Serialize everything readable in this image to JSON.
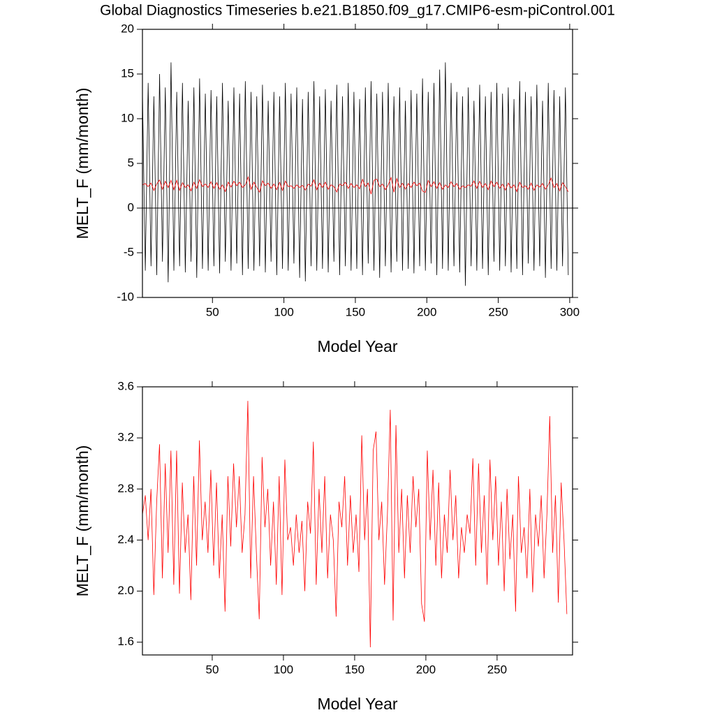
{
  "chart_data": [
    {
      "type": "line",
      "title": "Global Diagnostics Timeseries b.e21.B1850.f09_g17.CMIP6-esm-piControl.001",
      "ylabel": "MELT_F (mm/month)",
      "xlabel": "Model Year",
      "xlim": [
        1,
        302
      ],
      "ylim": [
        -10,
        20
      ],
      "xticks": [
        50,
        100,
        150,
        200,
        250,
        300
      ],
      "yticks": [
        -10,
        -5,
        0,
        5,
        10,
        15,
        20
      ],
      "zero_line": true,
      "x": [
        1,
        3,
        5,
        7,
        9,
        11,
        13,
        15,
        17,
        19,
        21,
        23,
        25,
        27,
        29,
        31,
        33,
        35,
        37,
        39,
        41,
        43,
        45,
        47,
        49,
        51,
        53,
        55,
        57,
        59,
        61,
        63,
        65,
        67,
        69,
        71,
        73,
        75,
        77,
        79,
        81,
        83,
        85,
        87,
        89,
        91,
        93,
        95,
        97,
        99,
        101,
        103,
        105,
        107,
        109,
        111,
        113,
        115,
        117,
        119,
        121,
        123,
        125,
        127,
        129,
        131,
        133,
        135,
        137,
        139,
        141,
        143,
        145,
        147,
        149,
        151,
        153,
        155,
        157,
        159,
        161,
        163,
        165,
        167,
        169,
        171,
        173,
        175,
        177,
        179,
        181,
        183,
        185,
        187,
        189,
        191,
        193,
        195,
        197,
        199,
        201,
        203,
        205,
        207,
        209,
        211,
        213,
        215,
        217,
        219,
        221,
        223,
        225,
        227,
        229,
        231,
        233,
        235,
        237,
        239,
        241,
        243,
        245,
        247,
        249,
        251,
        253,
        255,
        257,
        259,
        261,
        263,
        265,
        267,
        269,
        271,
        273,
        275,
        277,
        279,
        281,
        283,
        285,
        287,
        289,
        291,
        293,
        295,
        297,
        299
      ],
      "series": [
        {
          "color": "#000000",
          "values": [
            13,
            -7,
            14,
            -6.5,
            12.5,
            -7.5,
            15,
            -6,
            13.5,
            -8.3,
            16.3,
            -7,
            13,
            -6.5,
            14,
            -7.2,
            12,
            -6,
            13.5,
            -7.8,
            14.5,
            -6.8,
            12.8,
            -7,
            13.2,
            -6.5,
            12.5,
            -7.3,
            14,
            -6,
            12,
            -7,
            13.5,
            -6.2,
            12.8,
            -7.5,
            14.2,
            -6.8,
            13,
            -7,
            12.5,
            -6.5,
            13.8,
            -7.2,
            12,
            -6,
            13,
            -7.5,
            12.5,
            -6.8,
            14,
            -7,
            12.8,
            -6.2,
            13.5,
            -7.8,
            12.2,
            -8.2,
            13,
            -6.5,
            14.2,
            -7,
            12.5,
            -6.8,
            13.3,
            -7.2,
            12,
            -6,
            13.8,
            -7.5,
            12.5,
            -6.5,
            14,
            -7,
            13,
            -6.8,
            12.2,
            -7.5,
            13.5,
            -6.2,
            14.2,
            -7,
            12.8,
            -7.8,
            13,
            -6.5,
            14,
            -7.2,
            12.5,
            -6,
            13.5,
            -7,
            12,
            -6.8,
            13.2,
            -7.3,
            12.8,
            -6.5,
            14.5,
            -7,
            13,
            -6.2,
            14,
            -7.5,
            15.5,
            -6.8,
            16.3,
            -7,
            14,
            -6.5,
            13,
            -7.2,
            12.5,
            -8.7,
            13.5,
            -6.5,
            12,
            -7,
            13.8,
            -6.8,
            12.5,
            -7.5,
            13,
            -6,
            14,
            -7,
            12.8,
            -6.5,
            13.5,
            -7.2,
            12.2,
            -6.8,
            14.2,
            -7.5,
            13,
            -6.2,
            12.5,
            -7,
            13.8,
            -6.5,
            12,
            -7.8,
            14,
            -6.8,
            13.2,
            -7,
            12.5,
            -6.5,
            13.5,
            -7.5
          ]
        },
        {
          "color": "#ff0000",
          "values": [
            2.6,
            2.75,
            2.4,
            2.8,
            1.97,
            2.7,
            3.15,
            2.1,
            3.0,
            2.3,
            3.1,
            2.05,
            3.1,
            1.98,
            2.85,
            2.3,
            2.6,
            1.93,
            2.9,
            2.2,
            3.18,
            2.4,
            2.7,
            2.3,
            2.95,
            2.2,
            2.85,
            2.1,
            2.6,
            1.84,
            2.9,
            2.35,
            3.0,
            2.5,
            2.9,
            2.3,
            2.6,
            3.49,
            2.1,
            2.9,
            2.3,
            1.78,
            3.05,
            2.5,
            2.8,
            2.2,
            2.7,
            2.05,
            2.9,
            1.97,
            3.03,
            2.4,
            2.5,
            2.2,
            2.6,
            2.3,
            2.55,
            2.0,
            2.7,
            2.45,
            3.17,
            2.05,
            2.8,
            2.3,
            2.9,
            2.1,
            2.6,
            2.4,
            1.8,
            2.7,
            2.5,
            2.9,
            2.2,
            2.75,
            2.3,
            2.6,
            2.15,
            3.22,
            2.4,
            2.8,
            1.56,
            3.1,
            3.25,
            2.4,
            2.7,
            2.05,
            2.6,
            3.42,
            1.77,
            3.3,
            2.3,
            2.8,
            2.1,
            2.75,
            2.3,
            2.9,
            2.5,
            2.8,
            1.9,
            1.76,
            3.1,
            2.4,
            2.95,
            2.2,
            2.85,
            2.1,
            2.6,
            2.3,
            2.95,
            2.4,
            2.75,
            2.1,
            2.5,
            2.3,
            2.6,
            2.45,
            3.04,
            2.2,
            3.0,
            2.3,
            2.75,
            2.05,
            3.03,
            2.4,
            2.9,
            2.2,
            2.7,
            2.0,
            2.8,
            2.25,
            2.6,
            1.84,
            2.9,
            2.3,
            2.5,
            2.1,
            2.8,
            1.99,
            2.6,
            2.35,
            2.75,
            2.1,
            2.6,
            3.37,
            2.3,
            2.75,
            1.91,
            2.85,
            2.4,
            1.82
          ]
        }
      ]
    },
    {
      "type": "line",
      "ylabel": "MELT_F (mm/month)",
      "xlabel": "Model Year",
      "xlim": [
        1,
        303
      ],
      "ylim": [
        1.5,
        3.6
      ],
      "xticks": [
        50,
        100,
        150,
        200,
        250
      ],
      "yticks": [
        1.6,
        {
          "value": 2,
          "label": "2.0"
        },
        2.4,
        2.8,
        3.2,
        3.6
      ],
      "x": [
        1,
        3,
        5,
        7,
        9,
        11,
        13,
        15,
        17,
        19,
        21,
        23,
        25,
        27,
        29,
        31,
        33,
        35,
        37,
        39,
        41,
        43,
        45,
        47,
        49,
        51,
        53,
        55,
        57,
        59,
        61,
        63,
        65,
        67,
        69,
        71,
        73,
        75,
        77,
        79,
        81,
        83,
        85,
        87,
        89,
        91,
        93,
        95,
        97,
        99,
        101,
        103,
        105,
        107,
        109,
        111,
        113,
        115,
        117,
        119,
        121,
        123,
        125,
        127,
        129,
        131,
        133,
        135,
        137,
        139,
        141,
        143,
        145,
        147,
        149,
        151,
        153,
        155,
        157,
        159,
        161,
        163,
        165,
        167,
        169,
        171,
        173,
        175,
        177,
        179,
        181,
        183,
        185,
        187,
        189,
        191,
        193,
        195,
        197,
        199,
        201,
        203,
        205,
        207,
        209,
        211,
        213,
        215,
        217,
        219,
        221,
        223,
        225,
        227,
        229,
        231,
        233,
        235,
        237,
        239,
        241,
        243,
        245,
        247,
        249,
        251,
        253,
        255,
        257,
        259,
        261,
        263,
        265,
        267,
        269,
        271,
        273,
        275,
        277,
        279,
        281,
        283,
        285,
        287,
        289,
        291,
        293,
        295,
        297,
        299
      ],
      "series": [
        {
          "color": "#ff0000",
          "values": [
            2.6,
            2.75,
            2.4,
            2.8,
            1.97,
            2.7,
            3.15,
            2.1,
            3.0,
            2.3,
            3.1,
            2.05,
            3.1,
            1.98,
            2.85,
            2.3,
            2.6,
            1.93,
            2.9,
            2.2,
            3.18,
            2.4,
            2.7,
            2.3,
            2.95,
            2.2,
            2.85,
            2.1,
            2.6,
            1.84,
            2.9,
            2.35,
            3.0,
            2.5,
            2.9,
            2.3,
            2.6,
            3.49,
            2.1,
            2.9,
            2.3,
            1.78,
            3.05,
            2.5,
            2.8,
            2.2,
            2.7,
            2.05,
            2.9,
            1.97,
            3.03,
            2.4,
            2.5,
            2.2,
            2.6,
            2.3,
            2.55,
            2.0,
            2.7,
            2.45,
            3.17,
            2.05,
            2.8,
            2.3,
            2.9,
            2.1,
            2.6,
            2.4,
            1.8,
            2.7,
            2.5,
            2.9,
            2.2,
            2.75,
            2.3,
            2.6,
            2.15,
            3.22,
            2.4,
            2.8,
            1.56,
            3.1,
            3.25,
            2.4,
            2.7,
            2.05,
            2.6,
            3.42,
            1.77,
            3.3,
            2.3,
            2.8,
            2.1,
            2.75,
            2.3,
            2.9,
            2.5,
            2.8,
            1.9,
            1.76,
            3.1,
            2.4,
            2.95,
            2.2,
            2.85,
            2.1,
            2.6,
            2.3,
            2.95,
            2.4,
            2.75,
            2.1,
            2.5,
            2.3,
            2.6,
            2.45,
            3.04,
            2.2,
            3.0,
            2.3,
            2.75,
            2.05,
            3.03,
            2.4,
            2.9,
            2.2,
            2.7,
            2.0,
            2.8,
            2.25,
            2.6,
            1.84,
            2.9,
            2.3,
            2.5,
            2.1,
            2.8,
            1.99,
            2.6,
            2.35,
            2.75,
            2.1,
            2.6,
            3.37,
            2.3,
            2.75,
            1.91,
            2.85,
            2.4,
            1.82
          ]
        }
      ]
    }
  ]
}
